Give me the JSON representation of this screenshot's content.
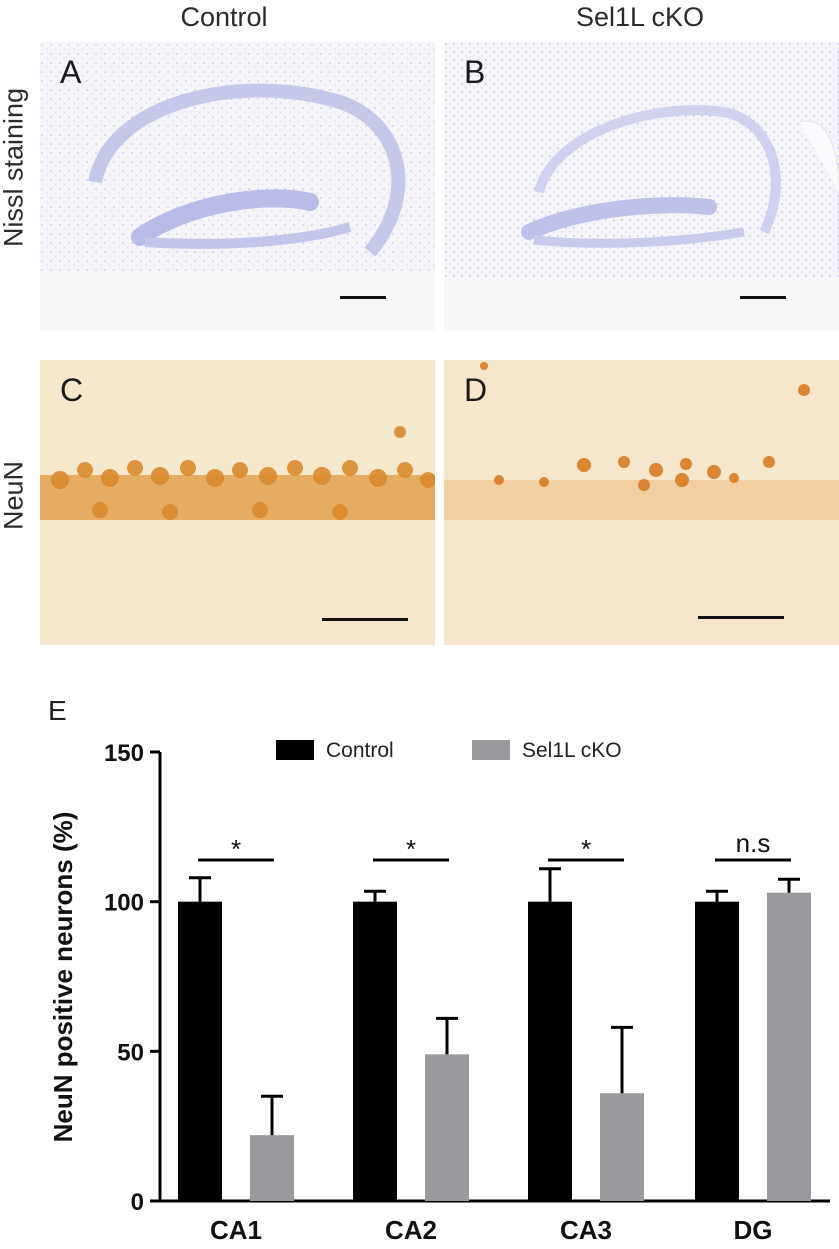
{
  "figure": {
    "col_titles": [
      "Control",
      "Sel1L cKO"
    ],
    "row_titles": [
      "Nissl staining",
      "NeuN"
    ],
    "panel_letters": [
      "A",
      "B",
      "C",
      "D",
      "E"
    ]
  },
  "chart_data": {
    "type": "bar",
    "panel_label": "E",
    "categories": [
      "CA1",
      "CA2",
      "CA3",
      "DG"
    ],
    "series": [
      {
        "name": "Control",
        "color": "#000000",
        "values": [
          100,
          100,
          100,
          100
        ],
        "errors": [
          8,
          3.5,
          11,
          3.5
        ]
      },
      {
        "name": "Sel1L cKO",
        "color": "#9a9a9e",
        "values": [
          22,
          49,
          36,
          103
        ],
        "errors": [
          13,
          12,
          22,
          4.5
        ]
      }
    ],
    "ylabel": "NeuN positive neurons (%)",
    "yticks": [
      0,
      50,
      100,
      150
    ],
    "ylim": [
      0,
      150
    ],
    "significance": [
      "*",
      "*",
      "*",
      "n.s"
    ],
    "legend_position": "top"
  }
}
